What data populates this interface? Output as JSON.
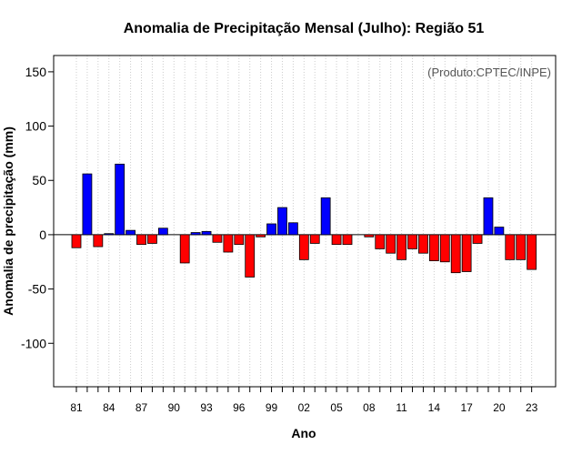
{
  "chart_data": {
    "type": "bar",
    "title": "Anomalia de Precipitação Mensal (Julho): Região 51",
    "xlabel": "Ano",
    "ylabel": "Anomalia de precipitação (mm)",
    "credit": "(Produto:CPTEC/INPE)",
    "ylim": [
      -140,
      165
    ],
    "yticks": [
      -100,
      -50,
      0,
      50,
      100,
      150
    ],
    "xtick_labels": [
      "81",
      "84",
      "87",
      "90",
      "93",
      "96",
      "99",
      "02",
      "05",
      "08",
      "11",
      "14",
      "17",
      "20",
      "23"
    ],
    "xtick_every": 3,
    "grid": true,
    "positive_color": "#0000ff",
    "negative_color": "#ff0000",
    "categories": [
      "1981",
      "1982",
      "1983",
      "1984",
      "1985",
      "1986",
      "1987",
      "1988",
      "1989",
      "1990",
      "1991",
      "1992",
      "1993",
      "1994",
      "1995",
      "1996",
      "1997",
      "1998",
      "1999",
      "2000",
      "2001",
      "2002",
      "2003",
      "2004",
      "2005",
      "2006",
      "2007",
      "2008",
      "2009",
      "2010",
      "2011",
      "2012",
      "2013",
      "2014",
      "2015",
      "2016",
      "2017",
      "2018",
      "2019",
      "2020",
      "2021",
      "2022",
      "2023"
    ],
    "values": [
      -12,
      56,
      -11,
      1,
      65,
      4,
      -9,
      -8,
      6,
      0,
      -26,
      2,
      3,
      -7,
      -16,
      -9,
      -39,
      -2,
      10,
      25,
      11,
      -23,
      -8,
      34,
      -9,
      -9,
      0,
      -2,
      -13,
      -17,
      -23,
      -13,
      -17,
      -24,
      -25,
      -35,
      -34,
      -8,
      34,
      7,
      -23,
      -23,
      -32
    ]
  }
}
